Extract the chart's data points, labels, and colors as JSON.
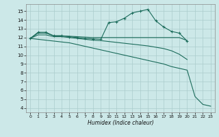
{
  "xlabel": "Humidex (Indice chaleur)",
  "ylabel": "",
  "background_color": "#cce8e8",
  "grid_color": "#aacccc",
  "line_color": "#1a6b5a",
  "xlim": [
    -0.5,
    23.5
  ],
  "ylim": [
    3.5,
    15.8
  ],
  "yticks": [
    4,
    5,
    6,
    7,
    8,
    9,
    10,
    11,
    12,
    13,
    14,
    15
  ],
  "xticks": [
    0,
    1,
    2,
    3,
    4,
    5,
    6,
    7,
    8,
    9,
    10,
    11,
    12,
    13,
    14,
    15,
    16,
    17,
    18,
    19,
    20,
    21,
    22,
    23
  ],
  "series": [
    {
      "x": [
        0,
        1,
        2,
        3,
        4,
        5,
        6,
        7,
        8,
        9,
        10,
        11,
        12,
        13,
        14,
        15,
        16,
        17,
        18,
        19,
        20
      ],
      "y": [
        11.9,
        12.6,
        12.6,
        12.2,
        12.2,
        12.1,
        12.0,
        11.9,
        11.85,
        11.8,
        13.7,
        13.8,
        14.2,
        14.8,
        15.0,
        15.2,
        13.9,
        13.2,
        12.7,
        12.5,
        11.6
      ],
      "marker": true
    },
    {
      "x": [
        0,
        1,
        2,
        3,
        4,
        5,
        6,
        7,
        8,
        9,
        10,
        11,
        12,
        13,
        14,
        15,
        16,
        17,
        18,
        19,
        20
      ],
      "y": [
        11.9,
        12.5,
        12.5,
        12.2,
        12.2,
        12.15,
        12.1,
        12.05,
        12.0,
        12.0,
        12.0,
        12.0,
        12.0,
        12.0,
        12.0,
        12.0,
        12.0,
        12.0,
        12.0,
        12.0,
        11.65
      ],
      "marker": false
    },
    {
      "x": [
        0,
        1,
        2,
        3,
        4,
        5,
        6,
        7,
        8,
        9,
        10,
        11,
        12,
        13,
        14,
        15,
        16,
        17,
        18,
        19,
        20
      ],
      "y": [
        11.9,
        12.3,
        12.3,
        12.1,
        12.1,
        12.0,
        11.9,
        11.8,
        11.7,
        11.65,
        11.55,
        11.45,
        11.35,
        11.25,
        11.15,
        11.05,
        10.9,
        10.75,
        10.5,
        10.1,
        9.5
      ],
      "marker": false
    },
    {
      "x": [
        0,
        1,
        2,
        3,
        4,
        5,
        6,
        7,
        8,
        9,
        10,
        11,
        12,
        13,
        14,
        15,
        16,
        17,
        18,
        19,
        20,
        21,
        22,
        23
      ],
      "y": [
        11.9,
        11.8,
        11.7,
        11.6,
        11.5,
        11.4,
        11.2,
        11.0,
        10.8,
        10.6,
        10.4,
        10.2,
        10.0,
        9.8,
        9.6,
        9.4,
        9.2,
        9.0,
        8.7,
        8.5,
        8.3,
        5.3,
        4.4,
        4.2
      ],
      "marker": false
    }
  ]
}
